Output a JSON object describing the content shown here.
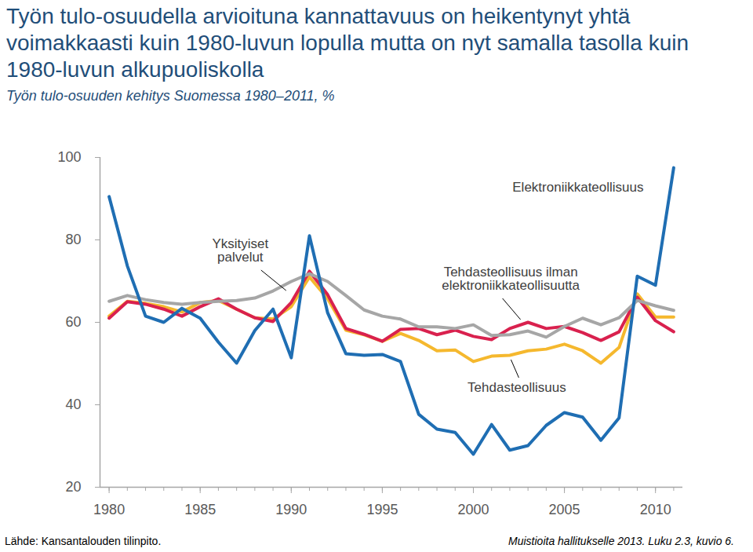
{
  "chart_data": {
    "type": "line",
    "title": "Työn tulo-osuudella arvioituna kannattavuus on heikentynyt yhtä voimakkaasti kuin 1980-luvun lopulla mutta on nyt samalla tasolla kuin 1980-luvun alkupuoliskolla",
    "subtitle": "Työn tulo-osuuden kehitys Suomessa 1980–2011, %",
    "source": "Lähde: Kansantalouden tilinpito.",
    "note": "Muistioita hallitukselle 2013. Luku 2.3, kuvio 6.",
    "x": [
      1980,
      1981,
      1982,
      1983,
      1984,
      1985,
      1986,
      1987,
      1988,
      1989,
      1990,
      1991,
      1992,
      1993,
      1994,
      1995,
      1996,
      1997,
      1998,
      1999,
      2000,
      2001,
      2002,
      2003,
      2004,
      2005,
      2006,
      2007,
      2008,
      2009,
      2010,
      2011
    ],
    "series": [
      {
        "name": "Tehdasteollisuus",
        "color": "#f5b82e",
        "values": [
          61.5,
          65.1,
          64.6,
          63.8,
          62.5,
          64.8,
          65.3,
          63.2,
          61.1,
          60.8,
          63.8,
          71,
          65.7,
          58.1,
          57,
          55.4,
          57.3,
          55.6,
          53.1,
          53.3,
          50.5,
          51.8,
          52,
          53.1,
          53.5,
          54.7,
          53.1,
          50.1,
          53.9,
          66.9,
          61.3,
          61.3
        ]
      },
      {
        "name": "Tehdasteollisuus ilman elektroniikkateollisuutta",
        "color": "#d9214e",
        "values": [
          61,
          65,
          64.4,
          63.2,
          61.5,
          63.8,
          65.7,
          63.2,
          61.1,
          60.2,
          64.8,
          72.4,
          66.7,
          58.5,
          57.1,
          55.4,
          58.3,
          58.5,
          57,
          58.1,
          56.6,
          55.8,
          58.5,
          60,
          58.5,
          59,
          57.5,
          55.6,
          57.7,
          66.1,
          60.4,
          57.7
        ]
      },
      {
        "name": "Yksityiset palvelut",
        "color": "#a6a6a6",
        "values": [
          65.1,
          66.5,
          65.5,
          64.8,
          64.4,
          64.8,
          65.1,
          65.3,
          65.9,
          67.6,
          69.9,
          71.8,
          69.9,
          66.5,
          63,
          61.5,
          60.8,
          58.9,
          58.9,
          58.5,
          59.4,
          56.8,
          57,
          57.9,
          56.4,
          59,
          61,
          59.4,
          61.1,
          65.3,
          64,
          62.9
        ]
      },
      {
        "name": "Elektroniikkateollisuus",
        "color": "#1f6eb3",
        "values": [
          90.5,
          73.7,
          61.5,
          60,
          63.4,
          61,
          55.2,
          50.1,
          58,
          63.2,
          51.4,
          81,
          62.3,
          52.4,
          52,
          52.2,
          50.5,
          37.7,
          34.1,
          33.3,
          28,
          35.2,
          29,
          30.1,
          35,
          38.1,
          37,
          31.4,
          36.8,
          71.2,
          69,
          97.5
        ]
      }
    ],
    "xlim": [
      1979.5,
      2011.5
    ],
    "xticks": [
      1980,
      1985,
      1990,
      1995,
      2000,
      2005,
      2010
    ],
    "ylim": [
      20,
      100
    ],
    "yticks": [
      20,
      40,
      60,
      80,
      100
    ],
    "grid": false
  }
}
